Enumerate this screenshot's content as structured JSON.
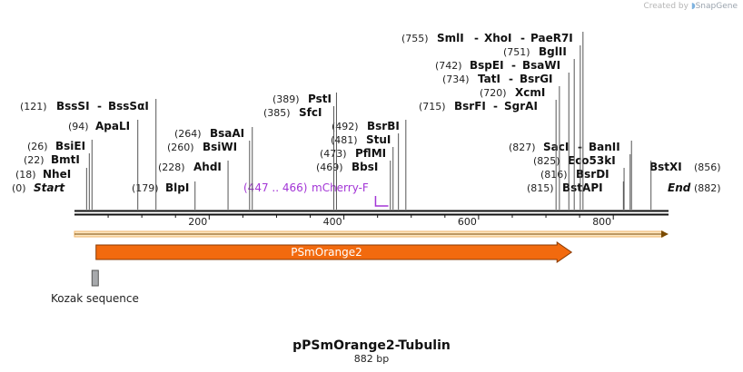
{
  "credit": {
    "prefix": "Created by",
    "brand": "SnapGene"
  },
  "map": {
    "length": 882,
    "start_label": "Start",
    "end_label": "End",
    "start_pos": "(0)",
    "end_pos": "(882)",
    "ticks": [
      "200",
      "400",
      "600",
      "800"
    ],
    "tick_values": [
      200,
      400,
      600,
      800
    ]
  },
  "sites": [
    {
      "id": "nhei",
      "pos": 18,
      "pos_label": "(18)",
      "name": "NheI"
    },
    {
      "id": "bmti",
      "pos": 22,
      "pos_label": "(22)",
      "name": "BmtI"
    },
    {
      "id": "bsiei",
      "pos": 26,
      "pos_label": "(26)",
      "name": "BsiEI"
    },
    {
      "id": "apali",
      "pos": 94,
      "pos_label": "(94)",
      "name": "ApaLI"
    },
    {
      "id": "bsssi",
      "pos": 121,
      "pos_label": "(121)",
      "name": "BssSI",
      "name2": "BssSαI"
    },
    {
      "id": "blpi",
      "pos": 179,
      "pos_label": "(179)",
      "name": "BlpI"
    },
    {
      "id": "ahdi",
      "pos": 228,
      "pos_label": "(228)",
      "name": "AhdI"
    },
    {
      "id": "bsiwi",
      "pos": 260,
      "pos_label": "(260)",
      "name": "BsiWI"
    },
    {
      "id": "bsaai",
      "pos": 264,
      "pos_label": "(264)",
      "name": "BsaAI"
    },
    {
      "id": "sfci",
      "pos": 385,
      "pos_label": "(385)",
      "name": "SfcI"
    },
    {
      "id": "psti",
      "pos": 389,
      "pos_label": "(389)",
      "name": "PstI"
    },
    {
      "id": "bbsi",
      "pos": 469,
      "pos_label": "(469)",
      "name": "BbsI"
    },
    {
      "id": "pflmi",
      "pos": 473,
      "pos_label": "(473)",
      "name": "PflMI"
    },
    {
      "id": "stui",
      "pos": 481,
      "pos_label": "(481)",
      "name": "StuI"
    },
    {
      "id": "bsrbi",
      "pos": 492,
      "pos_label": "(492)",
      "name": "BsrBI"
    },
    {
      "id": "bsrfi",
      "pos": 715,
      "pos_label": "(715)",
      "name": "BsrFI",
      "name2": "SgrAI"
    },
    {
      "id": "xcmi",
      "pos": 720,
      "pos_label": "(720)",
      "name": "XcmI"
    },
    {
      "id": "tati",
      "pos": 734,
      "pos_label": "(734)",
      "name": "TatI",
      "name2": "BsrGI"
    },
    {
      "id": "bspei",
      "pos": 742,
      "pos_label": "(742)",
      "name": "BspEI",
      "name2": "BsaWI"
    },
    {
      "id": "bglii",
      "pos": 751,
      "pos_label": "(751)",
      "name": "BglII"
    },
    {
      "id": "smli",
      "pos": 755,
      "pos_label": "(755)",
      "name": "SmlI",
      "name2": "XhoI",
      "name3": "PaeR7I"
    },
    {
      "id": "bstapi",
      "pos": 815,
      "pos_label": "(815)",
      "name": "BstAPI"
    },
    {
      "id": "bsrdi",
      "pos": 816,
      "pos_label": "(816)",
      "name": "BsrDI"
    },
    {
      "id": "eco53ki",
      "pos": 825,
      "pos_label": "(825)",
      "name": "Eco53kI"
    },
    {
      "id": "saci",
      "pos": 827,
      "pos_label": "(827)",
      "name": "SacI",
      "name2": "BanII"
    },
    {
      "id": "bstxi",
      "pos": 856,
      "pos_label": "(856)",
      "name": "BstXI"
    }
  ],
  "primer": {
    "range_label": "(447 .. 466)",
    "name": "mCherry-F",
    "start": 447,
    "end": 466
  },
  "features": [
    {
      "id": "psmorange2",
      "name": "PSmOrange2",
      "start": 32,
      "end": 738,
      "color": "#f26a0e"
    },
    {
      "id": "kozak",
      "name": "Kozak sequence",
      "start": 26,
      "end": 31,
      "color": "#a7a9ac"
    }
  ],
  "title": {
    "name": "pPSmOrange2-Tubulin",
    "length": "882 bp"
  }
}
